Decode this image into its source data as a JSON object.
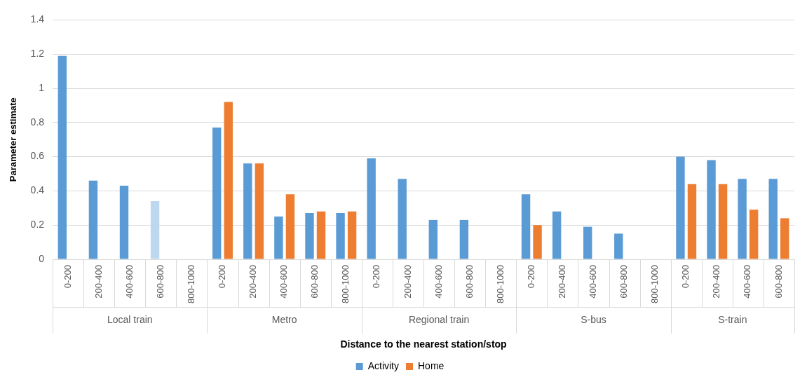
{
  "chart_data": {
    "type": "bar",
    "xlabel": "Distance to the nearest station/stop",
    "ylabel": "Parameter estimate",
    "categories": [
      "0-200",
      "200-400",
      "400-600",
      "600-800",
      "800-1000",
      "0-200",
      "200-400",
      "400-600",
      "600-800",
      "800-1000",
      "0-200",
      "200-400",
      "400-600",
      "600-800",
      "800-1000",
      "0-200",
      "200-400",
      "400-600",
      "600-800",
      "800-1000",
      "0-200",
      "200-400",
      "400-600",
      "600-800"
    ],
    "annotations": [
      "Local train",
      "Metro",
      "Regional train",
      "S-bus",
      "S-train"
    ],
    "series": [
      {
        "name": "Activity",
        "color": "#5b9bd5",
        "colors": [
          "#5b9bd5",
          "#5b9bd5",
          "#5b9bd5",
          "#bdd7ee",
          "#5b9bd5",
          "#5b9bd5",
          "#5b9bd5",
          "#5b9bd5",
          "#5b9bd5",
          "#5b9bd5",
          "#5b9bd5",
          "#5b9bd5",
          "#5b9bd5",
          "#5b9bd5",
          "#5b9bd5",
          "#5b9bd5",
          "#5b9bd5",
          "#5b9bd5",
          "#5b9bd5",
          "#5b9bd5",
          "#5b9bd5",
          "#5b9bd5",
          "#5b9bd5",
          "#5b9bd5"
        ],
        "values": [
          1.19,
          0.46,
          0.43,
          0.34,
          null,
          0.77,
          0.56,
          0.25,
          0.27,
          0.27,
          0.59,
          0.47,
          0.23,
          0.23,
          null,
          0.38,
          0.28,
          0.19,
          0.15,
          null,
          0.6,
          0.58,
          0.47,
          0.47
        ]
      },
      {
        "name": "Home",
        "color": "#ed7d31",
        "values": [
          null,
          null,
          null,
          null,
          null,
          0.92,
          0.56,
          0.38,
          0.28,
          0.28,
          null,
          null,
          null,
          null,
          null,
          0.2,
          null,
          null,
          null,
          null,
          0.44,
          0.44,
          0.29,
          0.24
        ]
      }
    ],
    "ylim": [
      0,
      1.4
    ],
    "yticks": [
      0,
      0.2,
      0.4,
      0.6,
      0.8,
      1,
      1.2,
      1.4
    ],
    "grid": "y",
    "legend": "bottom"
  }
}
